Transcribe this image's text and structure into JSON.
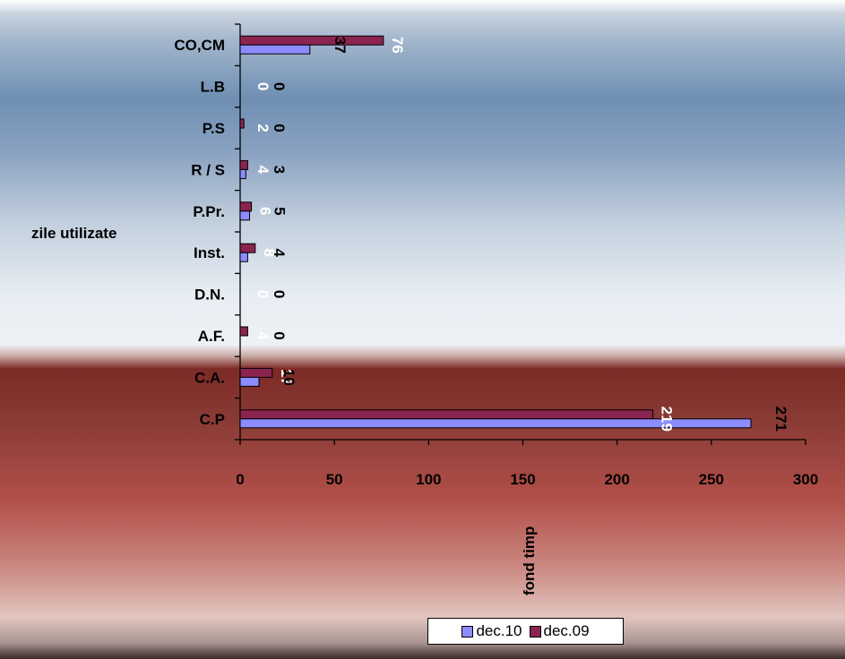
{
  "chart_data": {
    "type": "bar",
    "orientation": "horizontal",
    "categories": [
      "C.P",
      "C.A.",
      "A.F.",
      "D.N.",
      "Inst.",
      "P.Pr.",
      "R / S",
      "P.S",
      "L.B",
      "CO,CM"
    ],
    "series": [
      {
        "name": "dec.10",
        "color": "#8c8cff",
        "values": [
          271,
          10,
          0,
          0,
          4,
          5,
          3,
          0,
          0,
          37
        ]
      },
      {
        "name": "dec.09",
        "color": "#8b2450",
        "values": [
          219,
          17,
          4,
          0,
          8,
          6,
          4,
          2,
          0,
          76
        ]
      }
    ],
    "xlabel": "fond timp",
    "ylabel": "zile utilizate",
    "xlim": [
      0,
      300
    ],
    "xticks": [
      "0",
      "50",
      "100",
      "150",
      "200",
      "250",
      "300"
    ],
    "grid": false,
    "legend_position": "bottom"
  }
}
